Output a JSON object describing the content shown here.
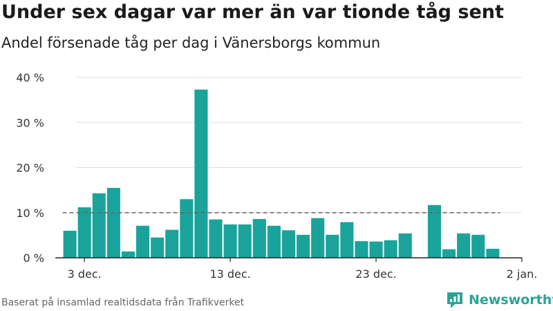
{
  "header": {
    "title": "Under sex dagar var mer än var tionde tåg sent",
    "subtitle": "Andel försenade tåg per dag i Vänersborgs kommun"
  },
  "footer": {
    "source": "Baserat på insamlad realtidsdata från Trafikverket",
    "brand": "Newsworthy"
  },
  "colors": {
    "bar": "#1aa39a",
    "reference_line": "#666666",
    "grid": "#dddddd",
    "brand": "#2aa397"
  },
  "icons": {
    "logo": "newsworthy-logo-icon"
  },
  "chart_data": {
    "type": "bar",
    "x": [
      "2022-12-02",
      "2022-12-03",
      "2022-12-04",
      "2022-12-05",
      "2022-12-06",
      "2022-12-07",
      "2022-12-08",
      "2022-12-09",
      "2022-12-10",
      "2022-12-11",
      "2022-12-12",
      "2022-12-13",
      "2022-12-14",
      "2022-12-15",
      "2022-12-16",
      "2022-12-17",
      "2022-12-18",
      "2022-12-19",
      "2022-12-20",
      "2022-12-21",
      "2022-12-22",
      "2022-12-23",
      "2022-12-24",
      "2022-12-25",
      "2022-12-26",
      "2022-12-27",
      "2022-12-28",
      "2022-12-29",
      "2022-12-30",
      "2022-12-31",
      "2023-01-01"
    ],
    "values": [
      6.0,
      11.2,
      14.3,
      15.5,
      1.4,
      7.1,
      4.5,
      6.2,
      13.0,
      37.3,
      8.5,
      7.4,
      7.4,
      8.6,
      7.1,
      6.1,
      5.1,
      8.8,
      5.1,
      7.9,
      3.7,
      3.6,
      3.9,
      5.4,
      null,
      11.7,
      1.9,
      5.4,
      5.1,
      2.0,
      null
    ],
    "xticks": [
      {
        "date": "2022-12-03",
        "label": "3 dec."
      },
      {
        "date": "2022-12-13",
        "label": "13 dec."
      },
      {
        "date": "2022-12-23",
        "label": "23 dec."
      },
      {
        "date": "2023-01-02",
        "label": "2 jan."
      }
    ],
    "yticks": [
      {
        "value": 0,
        "label": "0 %"
      },
      {
        "value": 10,
        "label": "10 %"
      },
      {
        "value": 20,
        "label": "20 %"
      },
      {
        "value": 30,
        "label": "30 %"
      },
      {
        "value": 40,
        "label": "40 %"
      }
    ],
    "ylim": [
      0,
      40
    ],
    "xlim": [
      "2022-12-01",
      "2023-01-02"
    ],
    "reference_line": {
      "value": 10,
      "style": "dashed"
    },
    "grid": true,
    "xlabel": "",
    "ylabel": ""
  }
}
